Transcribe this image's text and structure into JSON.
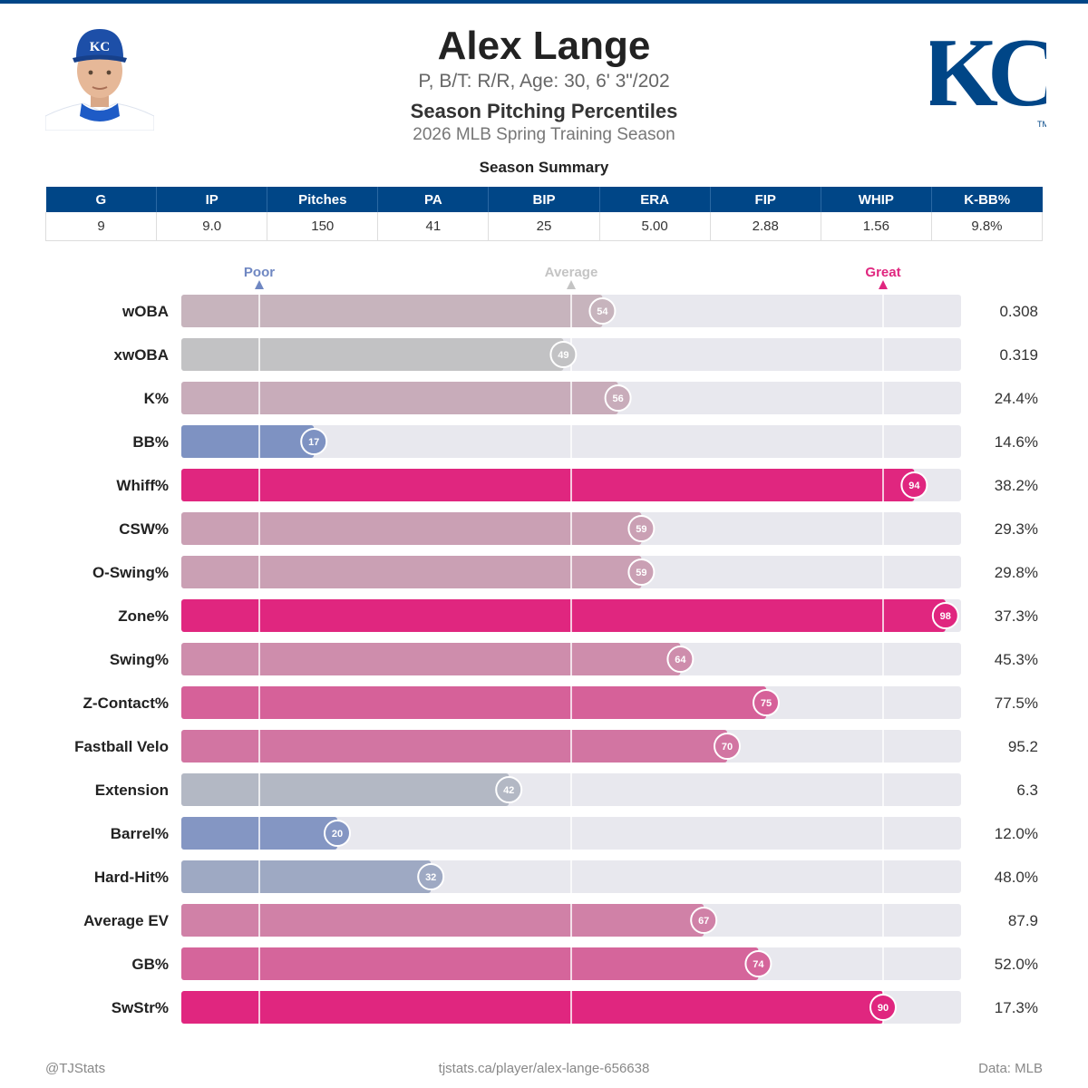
{
  "player": {
    "name": "Alex Lange",
    "bio": "P, B/T: R/R, Age: 30, 6' 3\"/202"
  },
  "report": {
    "title": "Season Pitching Percentiles",
    "season": "2026 MLB Spring Training Season",
    "summary_title": "Season Summary"
  },
  "summary": {
    "headers": [
      "G",
      "IP",
      "Pitches",
      "PA",
      "BIP",
      "ERA",
      "FIP",
      "WHIP",
      "K-BB%"
    ],
    "values": [
      "9",
      "9.0",
      "150",
      "41",
      "25",
      "5.00",
      "2.88",
      "1.56",
      "9.8%"
    ]
  },
  "chart_data": {
    "type": "bar",
    "orientation": "horizontal",
    "xlim": [
      0,
      100
    ],
    "reference_lines": [
      {
        "label": "Poor",
        "value": 10,
        "color": "#6f87c2"
      },
      {
        "label": "Average",
        "value": 50,
        "color": "#c4c4c4"
      },
      {
        "label": "Great",
        "value": 90,
        "color": "#e0267f"
      }
    ],
    "categories": [
      "wOBA",
      "xwOBA",
      "K%",
      "BB%",
      "Whiff%",
      "CSW%",
      "O-Swing%",
      "Zone%",
      "Swing%",
      "Z-Contact%",
      "Fastball Velo",
      "Extension",
      "Barrel%",
      "Hard-Hit%",
      "Average EV",
      "GB%",
      "SwStr%"
    ],
    "percentiles": [
      54,
      49,
      56,
      17,
      94,
      59,
      59,
      98,
      64,
      75,
      70,
      42,
      20,
      32,
      67,
      74,
      90
    ],
    "stat_values": [
      "0.308",
      "0.319",
      "24.4%",
      "14.6%",
      "38.2%",
      "29.3%",
      "29.8%",
      "37.3%",
      "45.3%",
      "77.5%",
      "95.2",
      "6.3",
      "12.0%",
      "48.0%",
      "87.9",
      "52.0%",
      "17.3%"
    ],
    "colors": {
      "poor": "#6f87c2",
      "average": "#c4c4c4",
      "great": "#e0267f",
      "track": "#e8e8ee"
    }
  },
  "footer": {
    "left": "@TJStats",
    "center": "tjstats.ca/player/alex-lange-656638",
    "right": "Data: MLB"
  },
  "icons": {
    "headshot": "player-headshot",
    "logo": "kc-royals-logo"
  }
}
